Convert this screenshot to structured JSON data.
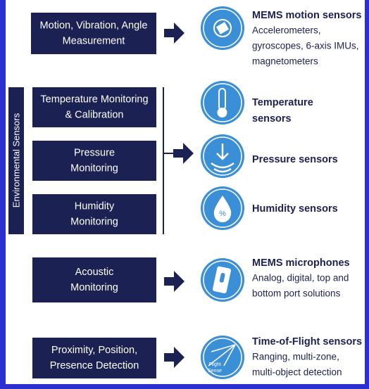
{
  "group_label": "Environmental Sensors",
  "inputs": [
    {
      "lines": [
        "Motion, Vibration, Angle",
        "Measurement"
      ]
    },
    {
      "lines": [
        "Temperature Monitoring",
        "& Calibration"
      ]
    },
    {
      "lines": [
        "Pressure",
        "Monitoring"
      ]
    },
    {
      "lines": [
        "Humidity",
        "Monitoring"
      ]
    },
    {
      "lines": [
        "Acoustic",
        "Monitoring"
      ]
    },
    {
      "lines": [
        "Proximity, Position,",
        "Presence Detection"
      ]
    }
  ],
  "sensors": [
    {
      "title": [
        "MEMS motion sensors"
      ],
      "description": [
        "Accelerometers,",
        "gyroscopes, 6-axis IMUs,",
        "magnetometers"
      ]
    },
    {
      "title": [
        "Temperature",
        "sensors"
      ],
      "description": []
    },
    {
      "title": [
        "Pressure sensors"
      ],
      "description": []
    },
    {
      "title": [
        "Humidity sensors"
      ],
      "description": []
    },
    {
      "title": [
        "MEMS microphones"
      ],
      "description": [
        "Analog, digital, top and",
        "bottom port solutions"
      ]
    },
    {
      "title": [
        "Time-of-Flight sensors"
      ],
      "description": [
        "Ranging, multi-zone,",
        "multi-object detection"
      ]
    }
  ],
  "icon_label": [
    "Flight",
    "Sense"
  ]
}
